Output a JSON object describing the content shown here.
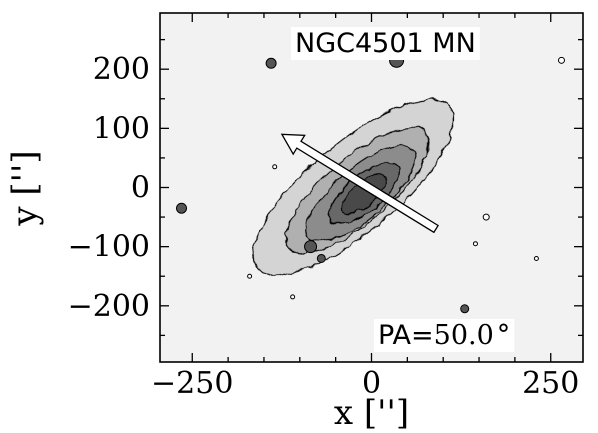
{
  "chart_data": {
    "type": "contour",
    "title": "NGC4501 MN",
    "xlabel": "x ['']",
    "ylabel": "y ['']",
    "xlim": [
      -295,
      295
    ],
    "ylim": [
      -295,
      295
    ],
    "x_ticks": [
      {
        "value": -250,
        "label": "−250"
      },
      {
        "value": 0,
        "label": "0"
      },
      {
        "value": 250,
        "label": "250"
      }
    ],
    "y_ticks": [
      {
        "value": 200,
        "label": "200"
      },
      {
        "value": 100,
        "label": "100"
      },
      {
        "value": 0,
        "label": "0"
      },
      {
        "value": -100,
        "label": "−100"
      },
      {
        "value": -200,
        "label": "−200"
      }
    ],
    "grid": false,
    "background_color": "#f2f2f2",
    "contour_fill_colors": [
      "#d4d4d4",
      "#b0b0b0",
      "#8c8c8c",
      "#686868",
      "#4a4a4a"
    ],
    "contour_levels": [
      {
        "level": 1,
        "center": [
          -25,
          0
        ],
        "semi_major": 175,
        "semi_minor": 62,
        "angle_deg": 40
      },
      {
        "level": 2,
        "center": [
          -20,
          -5
        ],
        "semi_major": 125,
        "semi_minor": 45,
        "angle_deg": 40
      },
      {
        "level": 3,
        "center": [
          -15,
          -10
        ],
        "semi_major": 95,
        "semi_minor": 35,
        "angle_deg": 40
      },
      {
        "level": 4,
        "center": [
          -10,
          -10
        ],
        "semi_major": 60,
        "semi_minor": 25,
        "angle_deg": 40
      },
      {
        "level": 5,
        "center": [
          -10,
          -10
        ],
        "semi_major": 38,
        "semi_minor": 16,
        "angle_deg": 40
      }
    ],
    "blobs": [
      {
        "x": -140,
        "y": 210,
        "r": 5
      },
      {
        "x": 35,
        "y": 215,
        "r": 7
      },
      {
        "x": -265,
        "y": -35,
        "r": 5
      },
      {
        "x": -85,
        "y": -100,
        "r": 6
      },
      {
        "x": -70,
        "y": -120,
        "r": 4
      },
      {
        "x": 160,
        "y": -50,
        "r": 3
      },
      {
        "x": 130,
        "y": -205,
        "r": 4
      },
      {
        "x": 265,
        "y": 215,
        "r": 3
      },
      {
        "x": -170,
        "y": -150,
        "r": 2
      },
      {
        "x": 145,
        "y": -95,
        "r": 2
      },
      {
        "x": -110,
        "y": -185,
        "r": 2
      },
      {
        "x": -135,
        "y": 35,
        "r": 2
      },
      {
        "x": 230,
        "y": -120,
        "r": 2
      }
    ],
    "annotations": {
      "name_label": "NGC4501 MN",
      "pa_label": "PA=",
      "pa_value": "50.0",
      "pa_unit": "°",
      "arrow": {
        "from": [
          90,
          -70
        ],
        "to": [
          -125,
          90
        ]
      }
    }
  }
}
